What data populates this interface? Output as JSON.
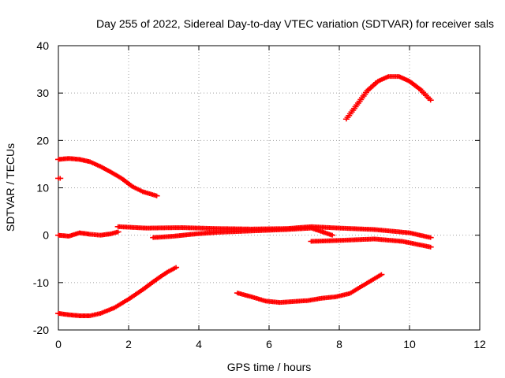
{
  "chart_data": {
    "type": "scatter",
    "title": "Day 255 of 2022, Sidereal Day-to-day VTEC variation (SDTVAR) for receiver sals",
    "xlabel": "GPS time / hours",
    "ylabel": "SDTVAR / TECUs",
    "xlim": [
      0,
      12
    ],
    "ylim": [
      -20,
      40
    ],
    "xticks": [
      0,
      2,
      4,
      6,
      8,
      10,
      12
    ],
    "yticks": [
      -20,
      -10,
      0,
      10,
      20,
      30,
      40
    ],
    "xtick_labels": [
      "0",
      "2",
      "4",
      "6",
      "8",
      "10",
      "12"
    ],
    "ytick_labels": [
      "-20",
      "-10",
      "0",
      "10",
      "20",
      "30",
      "40"
    ],
    "grid": true,
    "marker": "plus",
    "color": "#ff0000",
    "series": [
      {
        "x": [
          0.0,
          0.05
        ],
        "y": [
          12.0,
          12.0
        ]
      },
      {
        "x": [
          0.0,
          0.3,
          0.6,
          0.9,
          1.2,
          1.5,
          1.8,
          2.1,
          2.4,
          2.8
        ],
        "y": [
          16.0,
          16.2,
          16.0,
          15.5,
          14.5,
          13.3,
          12.0,
          10.3,
          9.2,
          8.3
        ]
      },
      {
        "x": [
          0.0,
          0.3,
          0.6,
          0.9,
          1.2,
          1.5,
          1.7
        ],
        "y": [
          0.0,
          -0.2,
          0.5,
          0.2,
          0.0,
          0.3,
          0.7
        ]
      },
      {
        "x": [
          1.7,
          2.5,
          3.5,
          4.5,
          5.5,
          6.5,
          7.2,
          8.0,
          9.0,
          10.0,
          10.6
        ],
        "y": [
          1.8,
          1.5,
          1.6,
          1.4,
          1.3,
          1.4,
          1.8,
          1.5,
          1.2,
          0.5,
          -0.5
        ]
      },
      {
        "x": [
          2.7,
          3.3,
          3.8,
          4.5,
          5.5,
          6.5,
          7.2,
          7.8
        ],
        "y": [
          -0.5,
          -0.2,
          0.2,
          0.6,
          0.9,
          1.2,
          1.5,
          0.0
        ]
      },
      {
        "x": [
          7.2,
          8.0,
          9.0,
          9.8,
          10.6
        ],
        "y": [
          -1.3,
          -1.1,
          -0.8,
          -1.3,
          -2.5
        ]
      },
      {
        "x": [
          0.0,
          0.3,
          0.6,
          0.9,
          1.2,
          1.6,
          2.0,
          2.4,
          2.8,
          3.1,
          3.35
        ],
        "y": [
          -16.5,
          -16.8,
          -17.0,
          -17.0,
          -16.5,
          -15.3,
          -13.5,
          -11.5,
          -9.3,
          -7.8,
          -6.8
        ]
      },
      {
        "x": [
          5.1,
          5.5,
          5.9,
          6.3,
          6.7,
          7.1,
          7.5,
          7.9,
          8.3,
          8.7,
          9.2
        ],
        "y": [
          -12.2,
          -13.0,
          -13.9,
          -14.2,
          -14.0,
          -13.8,
          -13.3,
          -13.0,
          -12.3,
          -10.5,
          -8.3
        ]
      },
      {
        "x": [
          8.2,
          8.5,
          8.8,
          9.1,
          9.4,
          9.7,
          10.0,
          10.3,
          10.6
        ],
        "y": [
          24.5,
          27.5,
          30.5,
          32.5,
          33.5,
          33.5,
          32.5,
          30.8,
          28.5
        ]
      }
    ]
  }
}
